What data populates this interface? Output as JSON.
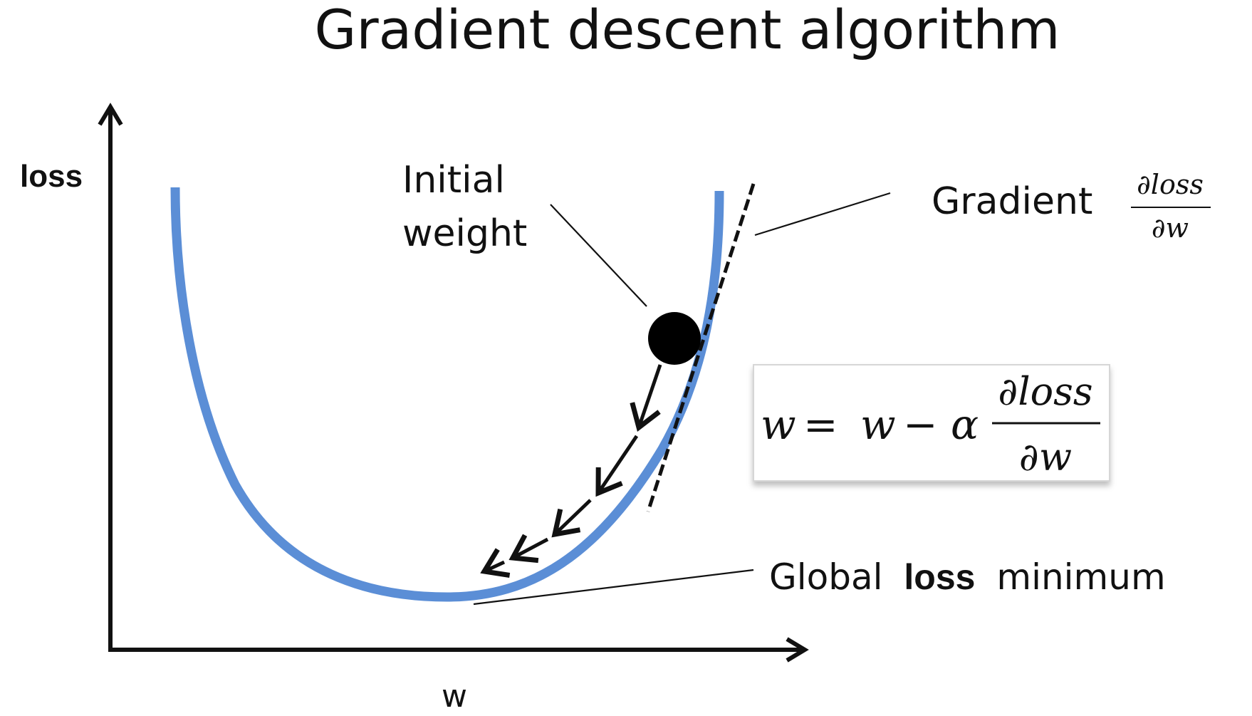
{
  "title": "Gradient descent algorithm",
  "axes": {
    "y_label": "loss",
    "x_label": "w"
  },
  "labels": {
    "initial_weight_line1": "Initial",
    "initial_weight_line2": "weight",
    "gradient": "Gradient",
    "global_prefix": "Global",
    "global_bold": "loss",
    "global_suffix": "minimum"
  },
  "gradient_fraction": {
    "numerator": "∂loss",
    "denominator": "∂w"
  },
  "update_rule": {
    "lhs": "w",
    "equals": "=",
    "w": "w",
    "minus": "−",
    "alpha": "α",
    "numerator": "∂loss",
    "denominator": "∂w"
  },
  "colors": {
    "curve": "#5b8ed6",
    "ink": "#111111",
    "background": "#ffffff"
  }
}
